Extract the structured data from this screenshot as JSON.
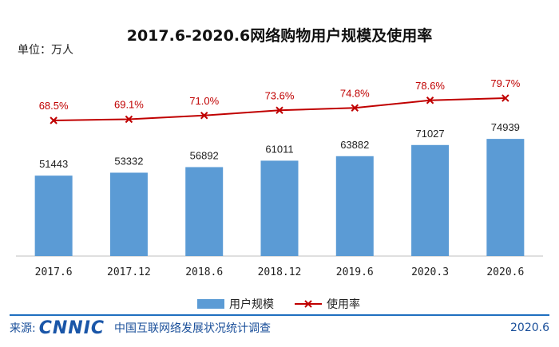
{
  "title": "2017.6-2020.6网络购物用户规模及使用率",
  "unit_label": "单位：万人",
  "legend": {
    "bar": "用户规模",
    "line": "使用率"
  },
  "footer": {
    "source_label": "来源:",
    "logo_text": "CNNIC",
    "org": "中国互联网络发展状况统计调查",
    "date": "2020.6"
  },
  "colors": {
    "bar": "#5B9BD5",
    "line": "#C00000",
    "rate_label": "#C00000"
  },
  "chart_data": {
    "type": "bar",
    "categories": [
      "2017.6",
      "2017.12",
      "2018.6",
      "2018.12",
      "2019.6",
      "2020.3",
      "2020.6"
    ],
    "series": [
      {
        "name": "用户规模",
        "type": "bar",
        "values": [
          51443,
          53332,
          56892,
          61011,
          63882,
          71027,
          74939
        ]
      },
      {
        "name": "使用率",
        "type": "line",
        "values": [
          68.5,
          69.1,
          71.0,
          73.6,
          74.8,
          78.6,
          79.7
        ],
        "labels": [
          "68.5%",
          "69.1%",
          "71.0%",
          "73.6%",
          "74.8%",
          "78.6%",
          "79.7%"
        ]
      }
    ],
    "bar_labels": [
      "51443",
      "53332",
      "56892",
      "61011",
      "63882",
      "71027",
      "74939"
    ],
    "ylim": [
      0,
      160000
    ],
    "ylim_rate": [
      0,
      160
    ],
    "grid": false,
    "legend_position": "bottom"
  }
}
